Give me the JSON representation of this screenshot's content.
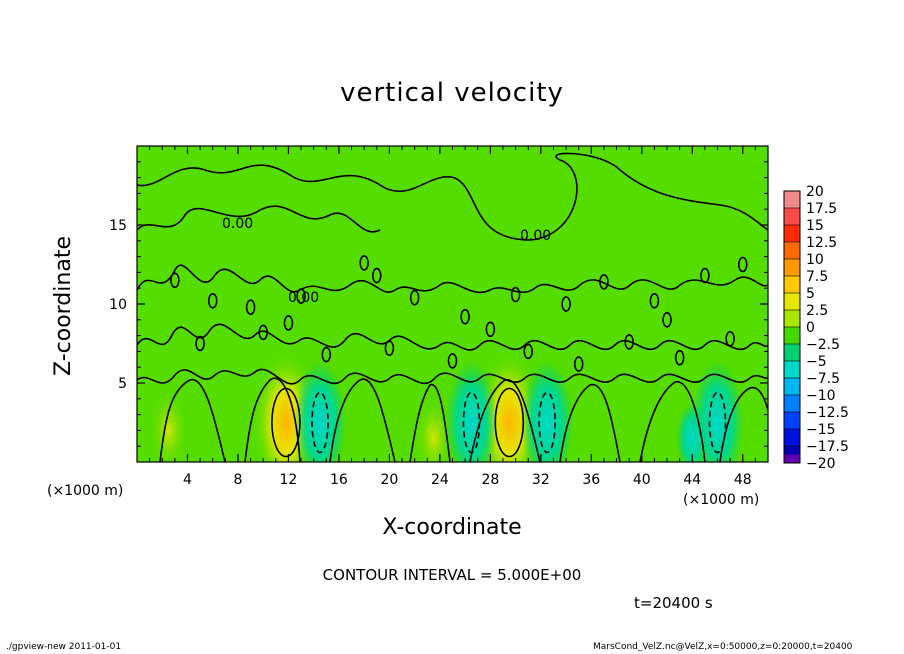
{
  "chart_data": {
    "type": "heatmap",
    "title": "vertical velocity",
    "xlabel": "X-coordinate",
    "ylabel": "Z-coordinate",
    "x_unit_label": "(×1000 m)",
    "xlim": [
      0,
      50
    ],
    "ylim": [
      0,
      20
    ],
    "x_ticks": [
      4,
      8,
      12,
      16,
      20,
      24,
      28,
      32,
      36,
      40,
      44,
      48
    ],
    "y_ticks": [
      5,
      10,
      15
    ],
    "colorbar": {
      "min": -20,
      "max": 20,
      "levels": [
        "20",
        "17.5",
        "15",
        "12.5",
        "10",
        "7.5",
        "5",
        "2.5",
        "0",
        "−2.5",
        "−5",
        "−7.5",
        "−10",
        "−12.5",
        "−15",
        "−17.5",
        "−20"
      ],
      "colors": [
        "#f08a8a",
        "#ff4a4a",
        "#ff2a00",
        "#ff6a00",
        "#ff9a00",
        "#ffc800",
        "#e6e600",
        "#a8e600",
        "#44d800",
        "#00d070",
        "#00d8c8",
        "#00b8f0",
        "#0080ff",
        "#0040ff",
        "#0010e0",
        "#0000b0",
        "#6000b0"
      ]
    },
    "contour_label": "0.00",
    "updrafts": [
      {
        "x": 11.8,
        "z": 2.5,
        "w": 7.5
      },
      {
        "x": 29.5,
        "z": 2.5,
        "w": 7.5
      },
      {
        "x": 23.5,
        "z": 1.5,
        "w": 3.0
      },
      {
        "x": 2.5,
        "z": 2.0,
        "w": 2.5
      }
    ],
    "downdrafts": [
      {
        "x": 14.5,
        "z": 2.5,
        "w": -5.0
      },
      {
        "x": 26.5,
        "z": 2.5,
        "w": -5.0
      },
      {
        "x": 32.5,
        "z": 2.5,
        "w": -5.0
      },
      {
        "x": 46.0,
        "z": 2.5,
        "w": -5.0
      },
      {
        "x": 44.0,
        "z": 1.5,
        "w": -3.0
      }
    ]
  },
  "annotations": {
    "contour_interval": "CONTOUR INTERVAL = 5.000E+00",
    "time": "t=20400  s",
    "footer_left": "./gpview-new   2011-01-01",
    "footer_right": "MarsCond_VelZ.nc@VelZ,x=0:50000,z=0:20000,t=20400"
  }
}
